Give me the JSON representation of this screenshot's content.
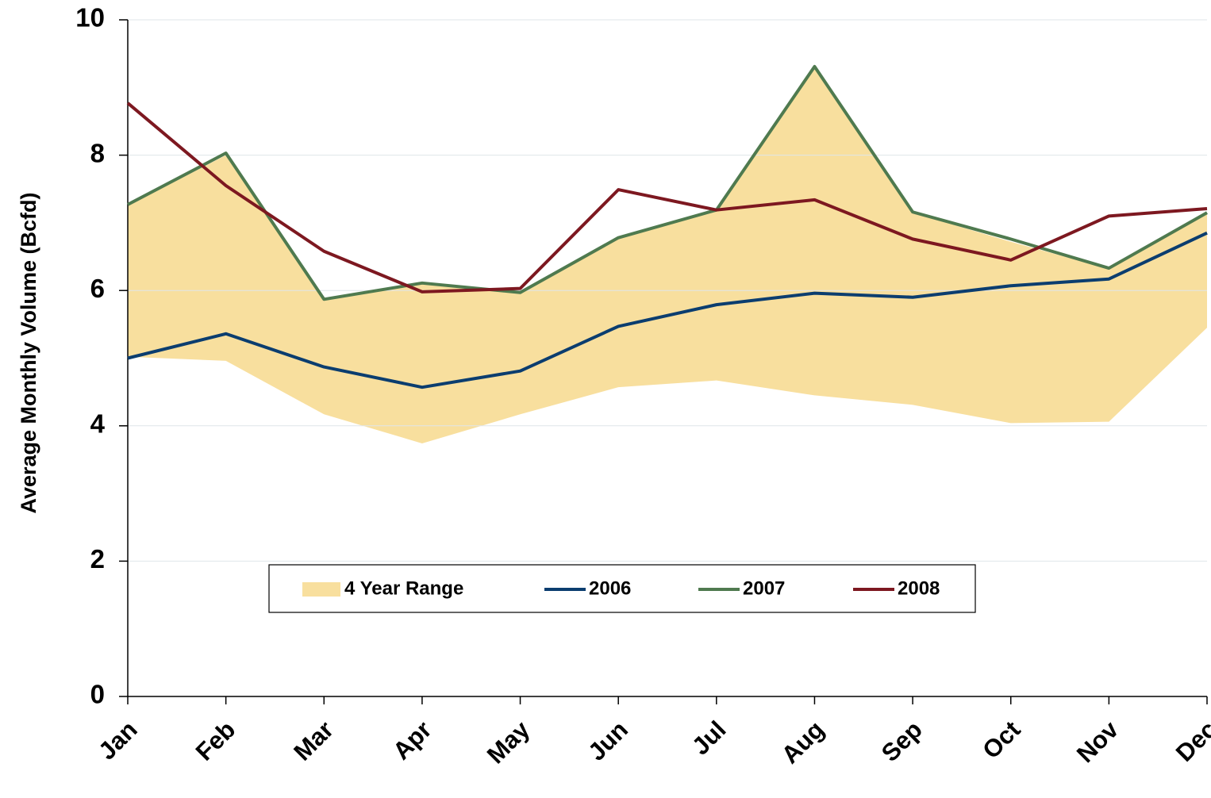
{
  "chart_data": {
    "type": "line",
    "y_label": "Average Monthly Volume (Bcfd)",
    "categories": [
      "Jan",
      "Feb",
      "Mar",
      "Apr",
      "May",
      "Jun",
      "Jul",
      "Aug",
      "Sep",
      "Oct",
      "Nov",
      "Dec"
    ],
    "range": {
      "name": "4 Year Range",
      "color": "#f8df9e",
      "high": [
        7.25,
        8.0,
        5.87,
        6.1,
        5.97,
        6.77,
        7.17,
        9.3,
        7.15,
        6.72,
        6.32,
        7.15
      ],
      "low": [
        5.02,
        4.96,
        4.17,
        3.74,
        4.17,
        4.57,
        4.67,
        4.45,
        4.31,
        4.04,
        4.06,
        5.45
      ]
    },
    "series": [
      {
        "name": "2006",
        "color": "#0b3d6f",
        "values": [
          5.0,
          5.36,
          4.87,
          4.57,
          4.81,
          5.47,
          5.79,
          5.96,
          5.9,
          6.07,
          6.17,
          6.85
        ]
      },
      {
        "name": "2007",
        "color": "#4f7a4f",
        "values": [
          7.27,
          8.03,
          5.87,
          6.11,
          5.97,
          6.78,
          7.19,
          9.31,
          7.16,
          6.76,
          6.33,
          7.15
        ]
      },
      {
        "name": "2008",
        "color": "#7d1820",
        "values": [
          8.77,
          7.55,
          6.58,
          5.98,
          6.03,
          7.49,
          7.19,
          7.34,
          6.76,
          6.45,
          7.1,
          7.21
        ]
      }
    ],
    "ylim": [
      0,
      10
    ],
    "yticks": [
      0,
      2,
      4,
      6,
      8,
      10
    ],
    "grid": true,
    "legend": "lower-center"
  }
}
